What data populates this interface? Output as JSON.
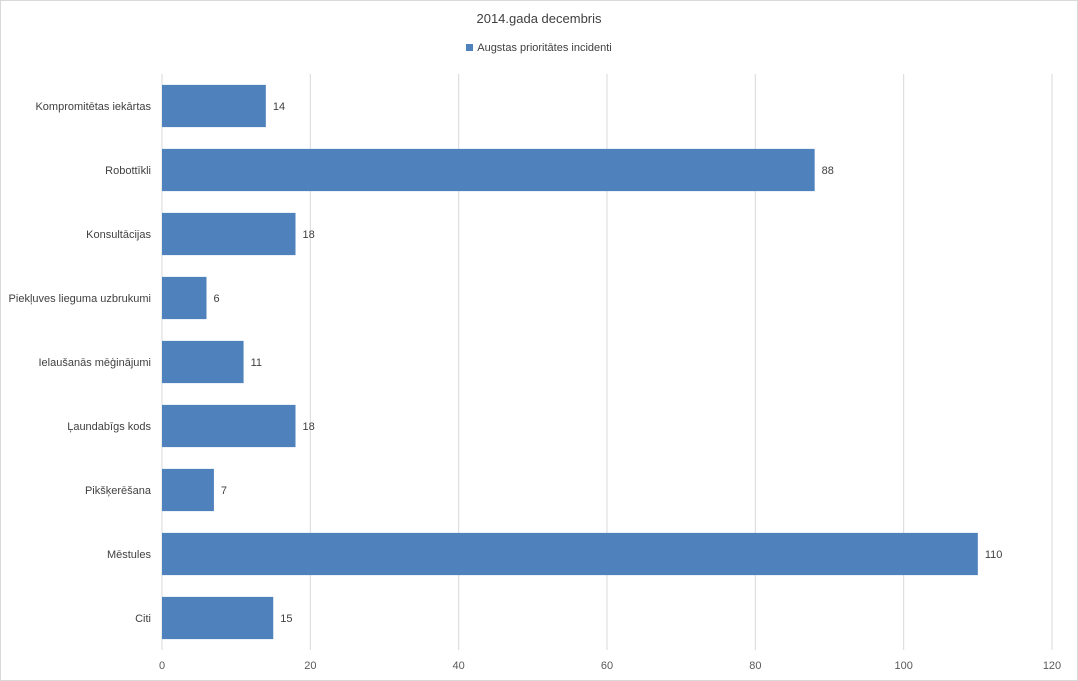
{
  "chart_data": {
    "type": "bar",
    "orientation": "horizontal",
    "title": "2014.gada decembris",
    "categories": [
      "Kompromitētas iekārtas",
      "Robottīkli",
      "Konsultācijas",
      "Piekļuves lieguma uzbrukumi",
      "Ielaušanās mēģinājumi",
      "Ļaundabīgs kods",
      "Pikšķerēšana",
      "Mēstules",
      "Citi"
    ],
    "series": [
      {
        "name": "Augstas prioritātes incidenti",
        "values": [
          14,
          88,
          18,
          6,
          11,
          18,
          7,
          110,
          15
        ],
        "color": "#4f81bd"
      }
    ],
    "xlim": [
      0,
      120
    ],
    "xticks": [
      0,
      20,
      40,
      60,
      80,
      100,
      120
    ],
    "grid": "vertical",
    "legend_position": "top",
    "data_labels": true
  }
}
